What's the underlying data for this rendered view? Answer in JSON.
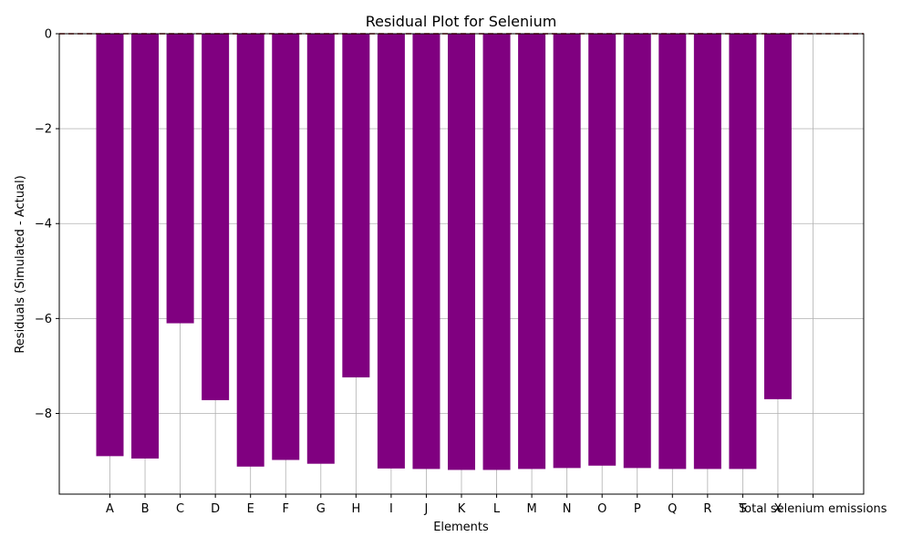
{
  "chart_data": {
    "type": "bar",
    "title": "Residual Plot for Selenium",
    "xlabel": "Elements",
    "ylabel": "Residuals (Simulated - Actual)",
    "categories": [
      "A",
      "B",
      "C",
      "D",
      "E",
      "F",
      "G",
      "H",
      "I",
      "J",
      "K",
      "L",
      "M",
      "N",
      "O",
      "P",
      "Q",
      "R",
      "S",
      "X",
      "Total selenium emissions"
    ],
    "values": [
      -8.9,
      -8.95,
      -6.1,
      -7.72,
      -9.12,
      -8.98,
      -9.06,
      -7.24,
      -9.16,
      -9.17,
      -9.19,
      -9.19,
      -9.17,
      -9.15,
      -9.1,
      -9.15,
      -9.17,
      -9.17,
      -9.17,
      -7.7,
      0
    ],
    "ylim": [
      -9.7,
      0
    ],
    "yticks": [
      0,
      -2,
      -4,
      -6,
      -8
    ],
    "ytick_labels": [
      "0",
      "−2",
      "−4",
      "−6",
      "−8"
    ],
    "zero_line_value": 0,
    "grid": true,
    "bar_color": "#800080",
    "zero_line_color": "#8b0000"
  }
}
